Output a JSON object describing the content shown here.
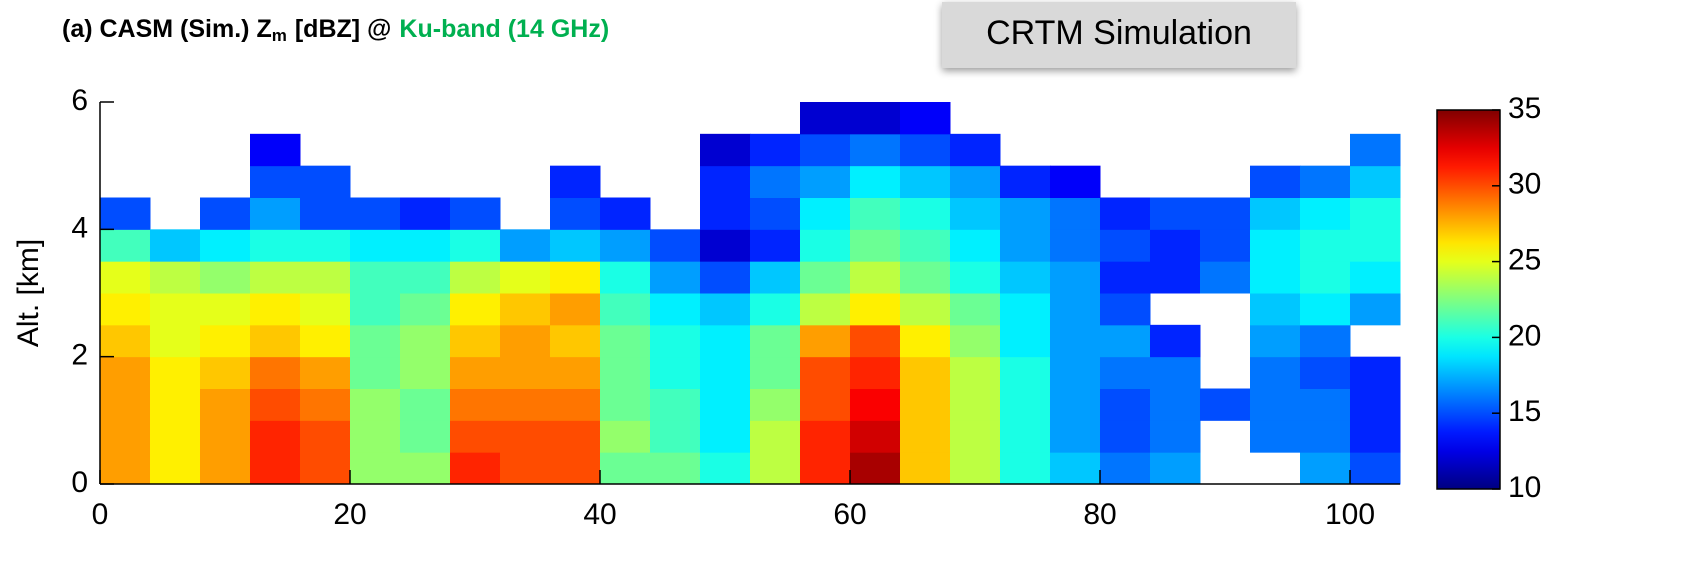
{
  "chart_data": {
    "type": "heatmap",
    "title": {
      "main": "(a) CASM (Sim.) Z",
      "subscript": "m",
      "units": "[dBZ] @",
      "band": "Ku-band (14 GHz)",
      "band_color": "#00b050"
    },
    "annotation": "CRTM Simulation",
    "ylabel": "Alt. [km]",
    "colormap": "jet",
    "xbins": [
      0,
      4,
      8,
      12,
      16,
      20,
      24,
      28,
      32,
      36,
      40,
      44,
      48,
      52,
      56,
      60,
      64,
      68,
      72,
      76,
      80,
      84,
      88,
      92,
      96,
      100,
      104
    ],
    "ybins": [
      0,
      0.5,
      1,
      1.5,
      2,
      2.5,
      3,
      3.5,
      4,
      4.5,
      5,
      5.5,
      6
    ],
    "values": [
      [
        28,
        28,
        28,
        28,
        27,
        26,
        25,
        21,
        15,
        null,
        null,
        null
      ],
      [
        26,
        26,
        26,
        26,
        25,
        25,
        24,
        18,
        null,
        null,
        null,
        null
      ],
      [
        28,
        28,
        28,
        27,
        26,
        25,
        23,
        19,
        15,
        null,
        null,
        null
      ],
      [
        31,
        31,
        30,
        29,
        27,
        26,
        24,
        20,
        17,
        15,
        13,
        null
      ],
      [
        30,
        30,
        29,
        28,
        26,
        25,
        24,
        20,
        15,
        15,
        null,
        null
      ],
      [
        23,
        23,
        23,
        22,
        22,
        21,
        21,
        19,
        15,
        null,
        null,
        null
      ],
      [
        23,
        22,
        22,
        23,
        23,
        22,
        21,
        19,
        14,
        null,
        null,
        null
      ],
      [
        31,
        30,
        29,
        28,
        27,
        26,
        24,
        20,
        15,
        null,
        null,
        null
      ],
      [
        30,
        30,
        29,
        28,
        28,
        27,
        25,
        17,
        null,
        null,
        null,
        null
      ],
      [
        30,
        30,
        29,
        28,
        27,
        28,
        26,
        18,
        15,
        14,
        null,
        null
      ],
      [
        22,
        23,
        22,
        22,
        22,
        21,
        20,
        17,
        14,
        null,
        null,
        null
      ],
      [
        22,
        21,
        21,
        20,
        20,
        19,
        17,
        15,
        null,
        null,
        null,
        null
      ],
      [
        20,
        19,
        19,
        19,
        19,
        18,
        15,
        12,
        14,
        14,
        12,
        null
      ],
      [
        24,
        24,
        23,
        22,
        22,
        20,
        18,
        14,
        15,
        16,
        14,
        null
      ],
      [
        31,
        31,
        30,
        30,
        28,
        24,
        22,
        20,
        19,
        17,
        15,
        12
      ],
      [
        34,
        33,
        32,
        31,
        30,
        26,
        24,
        22,
        21,
        19,
        16,
        12
      ],
      [
        27,
        27,
        27,
        27,
        26,
        24,
        22,
        21,
        20,
        18,
        15,
        13
      ],
      [
        24,
        24,
        24,
        24,
        23,
        22,
        20,
        19,
        18,
        17,
        14,
        null
      ],
      [
        20,
        20,
        20,
        20,
        19,
        19,
        18,
        17,
        17,
        14,
        null,
        null
      ],
      [
        18,
        17,
        17,
        17,
        17,
        17,
        17,
        16,
        16,
        13,
        null,
        null
      ],
      [
        16,
        15,
        15,
        16,
        17,
        15,
        14,
        15,
        14,
        null,
        null,
        null
      ],
      [
        17,
        16,
        16,
        16,
        14,
        null,
        14,
        14,
        15,
        null,
        null,
        null
      ],
      [
        null,
        null,
        15,
        null,
        null,
        null,
        16,
        15,
        15,
        null,
        null,
        null
      ],
      [
        null,
        16,
        16,
        16,
        17,
        18,
        19,
        19,
        18,
        15,
        null,
        null
      ],
      [
        17,
        16,
        16,
        15,
        16,
        19,
        20,
        20,
        19,
        16,
        null,
        null
      ],
      [
        15,
        14,
        14,
        14,
        null,
        17,
        19,
        20,
        20,
        18,
        16,
        null
      ]
    ],
    "xlim": [
      0,
      104
    ],
    "xticks": [
      0,
      20,
      40,
      60,
      80,
      100
    ],
    "ylim": [
      0,
      6
    ],
    "yticks": [
      0,
      2,
      4,
      6
    ],
    "clim": [
      10,
      35
    ],
    "cticks": [
      10,
      15,
      20,
      25,
      30,
      35
    ]
  }
}
